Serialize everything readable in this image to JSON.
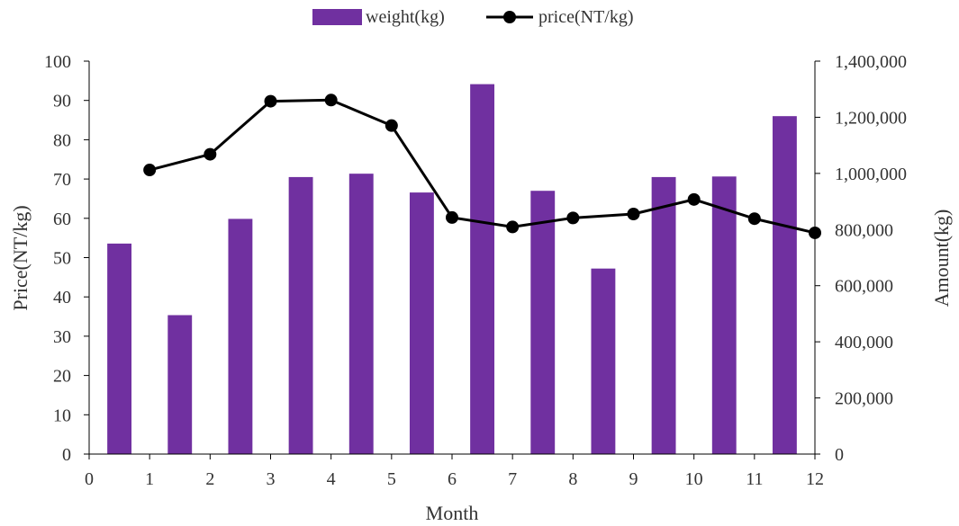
{
  "chart_data": {
    "type": "bar",
    "title": "",
    "xlabel": "Month",
    "ylabel_left": "Price(NT/kg)",
    "ylabel_right": "Amount(kg)",
    "xlim": [
      0,
      12
    ],
    "ylim_left": [
      0,
      100
    ],
    "ylim_right": [
      0,
      1400000
    ],
    "x_ticks": [
      "0",
      "1",
      "2",
      "3",
      "4",
      "5",
      "6",
      "7",
      "8",
      "9",
      "10",
      "11",
      "12"
    ],
    "y_left_ticks": [
      "0",
      "10",
      "20",
      "30",
      "40",
      "50",
      "60",
      "70",
      "80",
      "90",
      "100"
    ],
    "y_right_ticks": [
      "0",
      "200,000",
      "400,000",
      "600,000",
      "800,000",
      "1,000,000",
      "1,200,000",
      "1,400,000"
    ],
    "legend_position": "top-center",
    "grid": false,
    "series": [
      {
        "name": "weight(kg)",
        "kind": "bar",
        "axis": "right",
        "color": "#7030a0",
        "x": [
          0.5,
          1.5,
          2.5,
          3.5,
          4.5,
          5.5,
          6.5,
          7.5,
          8.5,
          9.5,
          10.5,
          11.5
        ],
        "values": [
          750000,
          495000,
          838000,
          987000,
          999000,
          932000,
          1318000,
          938000,
          661000,
          987000,
          989000,
          1204000
        ]
      },
      {
        "name": "price(NT/kg)",
        "kind": "line",
        "axis": "left",
        "color": "#000000",
        "x": [
          1,
          2,
          3,
          4,
          5,
          6,
          7,
          8,
          9,
          10,
          11,
          12
        ],
        "values": [
          72.3,
          76.3,
          89.8,
          90.1,
          83.6,
          60.2,
          57.8,
          60.1,
          61.1,
          64.8,
          59.9,
          56.3
        ]
      }
    ]
  }
}
